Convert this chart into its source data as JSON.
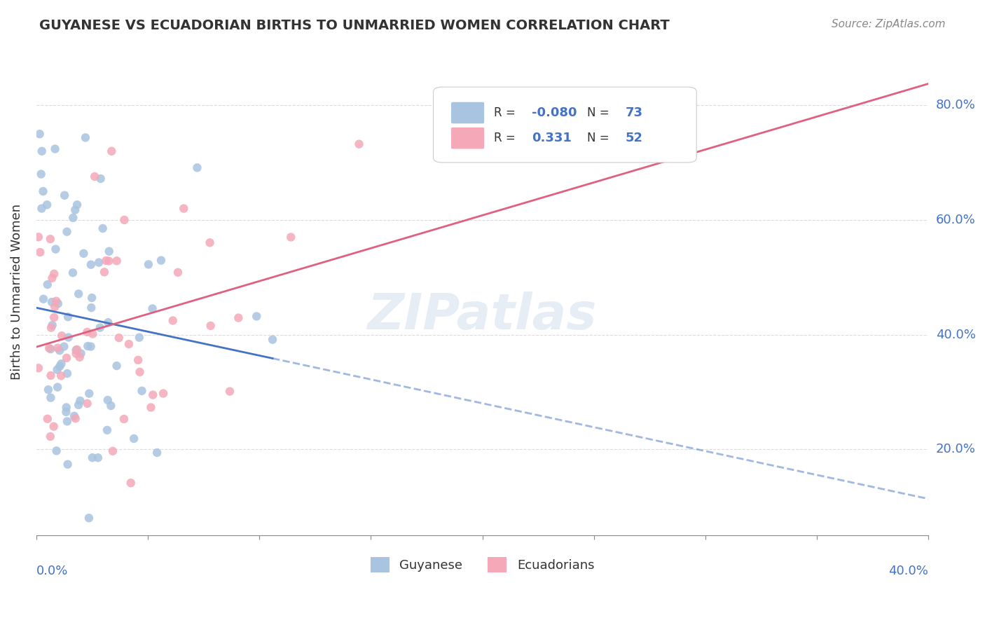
{
  "title": "GUYANESE VS ECUADORIAN BIRTHS TO UNMARRIED WOMEN CORRELATION CHART",
  "source": "Source: ZipAtlas.com",
  "ylabel": "Births to Unmarried Women",
  "yticks": [
    "20.0%",
    "40.0%",
    "60.0%",
    "80.0%"
  ],
  "ytick_vals": [
    0.2,
    0.4,
    0.6,
    0.8
  ],
  "xlim": [
    0.0,
    0.4
  ],
  "ylim": [
    0.05,
    0.9
  ],
  "watermark": "ZIPatlas",
  "guyanese_color": "#a8c4e0",
  "ecuadorian_color": "#f4a8b8",
  "trend_blue": "#4472c4",
  "trend_pink": "#e06080",
  "background": "#ffffff",
  "grid_color": "#cccccc",
  "title_color": "#333333",
  "axis_label_color": "#4472c4",
  "r_guyanese": -0.08,
  "n_guyanese": 73,
  "r_ecuadorian": 0.331,
  "n_ecuadorian": 52,
  "seed_guyanese": 123,
  "seed_ecuadorian": 456
}
